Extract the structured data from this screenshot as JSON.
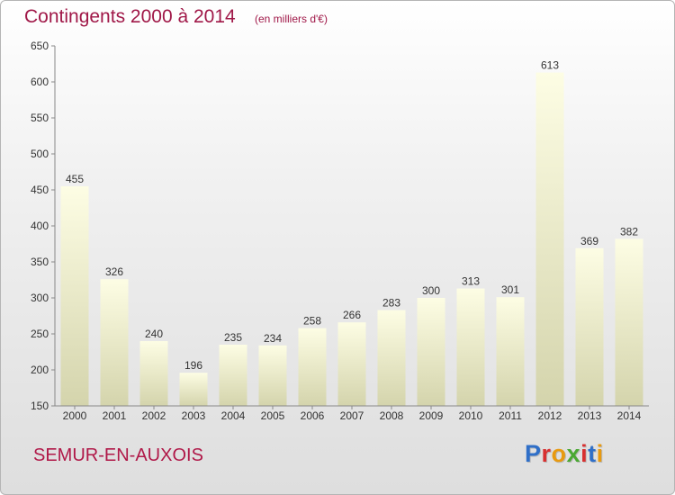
{
  "header": {
    "title": "Contingents 2000 à 2014",
    "subtitle": "(en milliers d'€)"
  },
  "footer": {
    "commune": "SEMUR-EN-AUXOIS",
    "logo_text": "Proxiti"
  },
  "colors": {
    "title": "#a01848",
    "bar_top": "#fdfde4",
    "bar_bottom": "#d4d4ac",
    "axis": "#888888",
    "logo": [
      "#2f6fc8",
      "#d83030",
      "#e89a10",
      "#4aa832",
      "#d83030",
      "#2f6fc8",
      "#e89a10"
    ]
  },
  "chart_data": {
    "type": "bar",
    "title": "Contingents 2000 à 2014",
    "xlabel": "",
    "ylabel": "",
    "categories": [
      "2000",
      "2001",
      "2002",
      "2003",
      "2004",
      "2005",
      "2006",
      "2007",
      "2008",
      "2009",
      "2010",
      "2011",
      "2012",
      "2013",
      "2014"
    ],
    "values": [
      455,
      326,
      240,
      196,
      235,
      234,
      258,
      266,
      283,
      300,
      313,
      301,
      613,
      369,
      382
    ],
    "ylim": [
      150,
      650
    ],
    "yticks": [
      150,
      200,
      250,
      300,
      350,
      400,
      450,
      500,
      550,
      600,
      650
    ],
    "grid": false,
    "data_labels": true
  }
}
